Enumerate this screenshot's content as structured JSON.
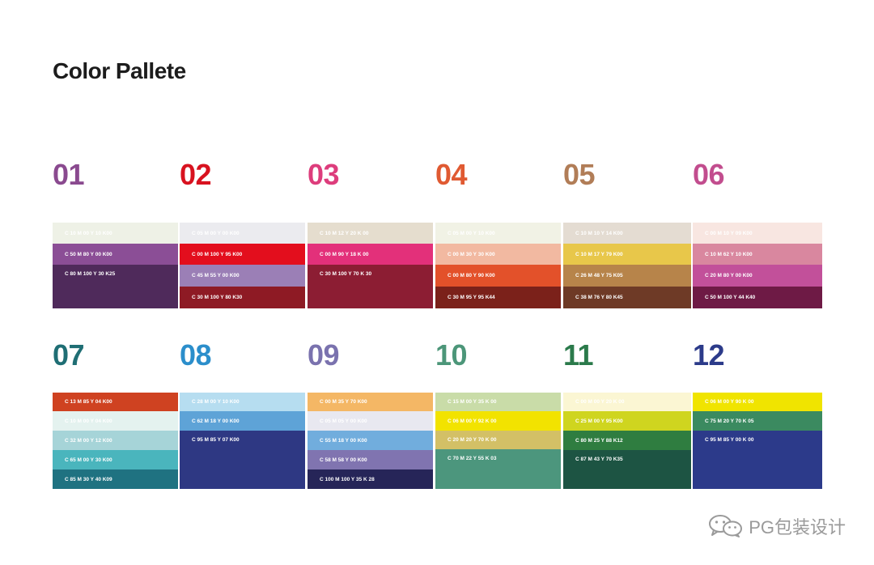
{
  "title": "Color Pallete",
  "palettes": [
    {
      "num": "01",
      "color": "#8a4a8f",
      "swatches": [
        {
          "label": "C 10 M 00 Y 10 K00",
          "bg": "#eef1e6",
          "fg": "#ffffff"
        },
        {
          "label": "C 50 M 80 Y 00 K00",
          "bg": "#8b4e96",
          "fg": "#ffffff"
        },
        {
          "label": "C 80 M 100 Y 30 K25",
          "bg": "#4f2a5b",
          "fg": "#ffffff"
        }
      ]
    },
    {
      "num": "02",
      "color": "#d8121f",
      "swatches": [
        {
          "label": "C 05 M 00 Y 00 K00",
          "bg": "#ebebef",
          "fg": "#ffffff"
        },
        {
          "label": "C 00 M 100 Y 95 K00",
          "bg": "#e30e1d",
          "fg": "#ffffff"
        },
        {
          "label": "C 45 M 55 Y 00 K00",
          "bg": "#9b7fb6",
          "fg": "#ffffff"
        },
        {
          "label": "C 30 M 100 Y 80 K30",
          "bg": "#8e1a24",
          "fg": "#ffffff"
        }
      ]
    },
    {
      "num": "03",
      "color": "#dd3d7c",
      "swatches": [
        {
          "label": "C 10 M 12 Y 20 K 00",
          "bg": "#e5ddce",
          "fg": "#ffffff"
        },
        {
          "label": "C 00 M 90 Y 18 K 00",
          "bg": "#e3307a",
          "fg": "#ffffff"
        },
        {
          "label": "C 30 M 100 Y 70 K 30",
          "bg": "#8c1d33",
          "fg": "#ffffff"
        }
      ]
    },
    {
      "num": "04",
      "color": "#e05a32",
      "swatches": [
        {
          "label": "C 05 M 00 Y 10 K00",
          "bg": "#f1f2e5",
          "fg": "#ffffff"
        },
        {
          "label": "C 00 M 30 Y 30 K00",
          "bg": "#f2b9a1",
          "fg": "#ffffff"
        },
        {
          "label": "C 00 M 80 Y 90 K00",
          "bg": "#e3512a",
          "fg": "#ffffff"
        },
        {
          "label": "C 30 M 95 Y 95 K44",
          "bg": "#7b211a",
          "fg": "#ffffff"
        }
      ]
    },
    {
      "num": "05",
      "color": "#b17d57",
      "swatches": [
        {
          "label": "C 10 M 10 Y 14 K00",
          "bg": "#e4dcd2",
          "fg": "#ffffff"
        },
        {
          "label": "C 10 M 17 Y 79 K00",
          "bg": "#e8c74a",
          "fg": "#ffffff"
        },
        {
          "label": "C 26 M 48 Y 75 K05",
          "bg": "#b7844a",
          "fg": "#ffffff"
        },
        {
          "label": "C 38 M 76 Y 80 K45",
          "bg": "#6e3a26",
          "fg": "#ffffff"
        }
      ]
    },
    {
      "num": "06",
      "color": "#c24d8e",
      "swatches": [
        {
          "label": "C 00 M 10 Y 09 K00",
          "bg": "#f8e6e1",
          "fg": "#ffffff"
        },
        {
          "label": "C 10 M 62 Y 10 K00",
          "bg": "#d9879f",
          "fg": "#ffffff"
        },
        {
          "label": "C 20 M 80 Y 00 K00",
          "bg": "#c2509a",
          "fg": "#ffffff"
        },
        {
          "label": "C 50 M 100 Y 44 K40",
          "bg": "#6e1a45",
          "fg": "#ffffff"
        }
      ]
    },
    {
      "num": "07",
      "color": "#1f6e74",
      "swatches": [
        {
          "label": "C 13 M 85 Y 04 K00",
          "bg": "#cf4221",
          "fg": "#ffffff"
        },
        {
          "label": "C 10 M 00 Y 04 K00",
          "bg": "#e4f2ef",
          "fg": "#ffffff"
        },
        {
          "label": "C 32 M 00 Y 12 K00",
          "bg": "#a6d4d8",
          "fg": "#ffffff"
        },
        {
          "label": "C 65 M 00 Y 30 K00",
          "bg": "#4ab5bd",
          "fg": "#ffffff"
        },
        {
          "label": "C 85 M 30 Y 40 K09",
          "bg": "#1f7281",
          "fg": "#ffffff"
        }
      ]
    },
    {
      "num": "08",
      "color": "#2b8ecb",
      "swatches": [
        {
          "label": "C 28 M 00 Y 10 K00",
          "bg": "#b6ddf0",
          "fg": "#ffffff"
        },
        {
          "label": "C 62 M 18 Y 00 K00",
          "bg": "#5ea3d7",
          "fg": "#ffffff"
        },
        {
          "label": "C 95 M 85 Y 07 K00",
          "bg": "#2e3883",
          "fg": "#ffffff"
        }
      ]
    },
    {
      "num": "09",
      "color": "#7a72ae",
      "swatches": [
        {
          "label": "C 00 M 35 Y 70 K00",
          "bg": "#f4b765",
          "fg": "#ffffff"
        },
        {
          "label": "C 05 M 05 Y 00 K00",
          "bg": "#e8e8f0",
          "fg": "#ffffff"
        },
        {
          "label": "C 55 M 18 Y 00 K00",
          "bg": "#71addd",
          "fg": "#ffffff"
        },
        {
          "label": "C 58 M 58 Y 00 K00",
          "bg": "#8074b0",
          "fg": "#ffffff"
        },
        {
          "label": "C 100 M 100 Y 35 K 28",
          "bg": "#262558",
          "fg": "#ffffff"
        }
      ]
    },
    {
      "num": "10",
      "color": "#4c9679",
      "swatches": [
        {
          "label": "C 15 M 00 Y 35 K 00",
          "bg": "#c9dca8",
          "fg": "#ffffff"
        },
        {
          "label": "C 06 M 00 Y 92 K 00",
          "bg": "#f2e300",
          "fg": "#ffffff"
        },
        {
          "label": "C 20 M 20 Y 70 K 00",
          "bg": "#d3c066",
          "fg": "#ffffff"
        },
        {
          "label": "C 70 M 22 Y 55 K 03",
          "bg": "#4c967d",
          "fg": "#ffffff"
        }
      ]
    },
    {
      "num": "11",
      "color": "#2b7a4b",
      "swatches": [
        {
          "label": "C 00 M 00 Y 20 K 00",
          "bg": "#fbf6d3",
          "fg": "#ffffff"
        },
        {
          "label": "C 25 M 00 Y 95 K00",
          "bg": "#cfd51f",
          "fg": "#ffffff"
        },
        {
          "label": "C 80 M 25 Y 88 K12",
          "bg": "#2f7d40",
          "fg": "#ffffff"
        },
        {
          "label": "C 87 M 43 Y 70 K35",
          "bg": "#1d5443",
          "fg": "#ffffff"
        }
      ]
    },
    {
      "num": "12",
      "color": "#2c3b8a",
      "swatches": [
        {
          "label": "C 06 M 00 Y 90 K 00",
          "bg": "#f0e400",
          "fg": "#ffffff"
        },
        {
          "label": "C 75 M 20 Y 70 K 05",
          "bg": "#3b8a60",
          "fg": "#ffffff"
        },
        {
          "label": "C 95 M 85 Y 00 K 00",
          "bg": "#2c3a8a",
          "fg": "#ffffff"
        }
      ]
    }
  ],
  "watermark": {
    "text": "PG包装设计",
    "icon": "wechat-icon",
    "color": "#9a9a9a"
  }
}
